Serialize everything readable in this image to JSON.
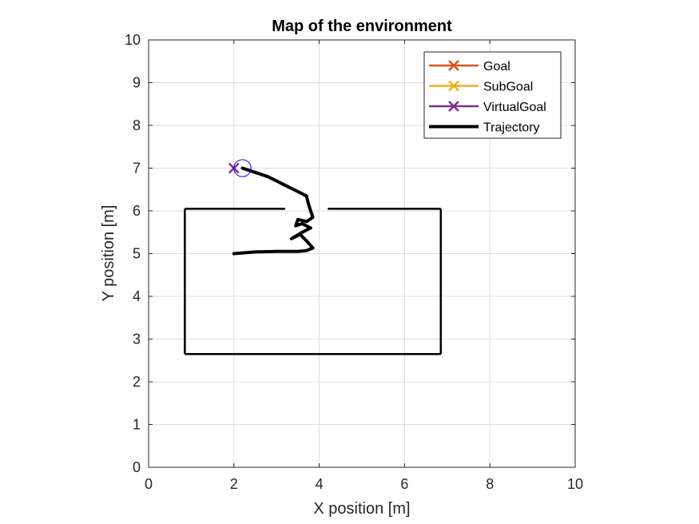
{
  "chart_data": {
    "type": "line",
    "title": "Map of the environment",
    "xlabel": "X position [m]",
    "ylabel": "Y position [m]",
    "xlim": [
      0,
      10
    ],
    "ylim": [
      0,
      10
    ],
    "xticks": [
      "0",
      "2",
      "4",
      "6",
      "8",
      "10"
    ],
    "yticks": [
      "0",
      "1",
      "2",
      "3",
      "4",
      "5",
      "6",
      "7",
      "8",
      "9",
      "10"
    ],
    "grid": true,
    "legend_position": "top-right",
    "series": [
      {
        "name": "Goal",
        "marker": "x",
        "color": "#D95319",
        "points": []
      },
      {
        "name": "SubGoal",
        "marker": "x",
        "color": "#EDB120",
        "points": []
      },
      {
        "name": "VirtualGoal",
        "marker": "x",
        "color": "#7E2F8E",
        "points": [
          [
            2.0,
            7.0
          ]
        ]
      },
      {
        "name": "Trajectory",
        "color": "#000000",
        "points": [
          [
            2.0,
            5.0
          ],
          [
            2.5,
            5.04
          ],
          [
            3.0,
            5.05
          ],
          [
            3.5,
            5.05
          ],
          [
            3.7,
            5.07
          ],
          [
            3.85,
            5.13
          ],
          [
            3.7,
            5.3
          ],
          [
            3.55,
            5.45
          ],
          [
            3.35,
            5.35
          ],
          [
            3.6,
            5.5
          ],
          [
            3.8,
            5.6
          ],
          [
            3.6,
            5.7
          ],
          [
            3.45,
            5.65
          ],
          [
            3.5,
            5.8
          ],
          [
            3.7,
            5.75
          ],
          [
            3.85,
            5.85
          ],
          [
            3.8,
            6.0
          ],
          [
            3.75,
            6.15
          ],
          [
            3.7,
            6.35
          ],
          [
            3.5,
            6.45
          ],
          [
            3.2,
            6.6
          ],
          [
            2.8,
            6.8
          ],
          [
            2.5,
            6.9
          ],
          [
            2.2,
            7.0
          ]
        ]
      },
      {
        "name": "Walls",
        "color": "#000000",
        "segments": [
          [
            [
              0.85,
              2.65
            ],
            [
              6.85,
              2.65
            ]
          ],
          [
            [
              6.85,
              2.65
            ],
            [
              6.85,
              6.05
            ]
          ],
          [
            [
              6.85,
              6.05
            ],
            [
              4.2,
              6.05
            ]
          ],
          [
            [
              3.2,
              6.05
            ],
            [
              0.85,
              6.05
            ]
          ],
          [
            [
              0.85,
              6.05
            ],
            [
              0.85,
              2.65
            ]
          ]
        ]
      },
      {
        "name": "Robot",
        "color": "#0000FF",
        "circle": {
          "center": [
            2.2,
            7.0
          ],
          "radius": 0.2
        }
      }
    ]
  }
}
